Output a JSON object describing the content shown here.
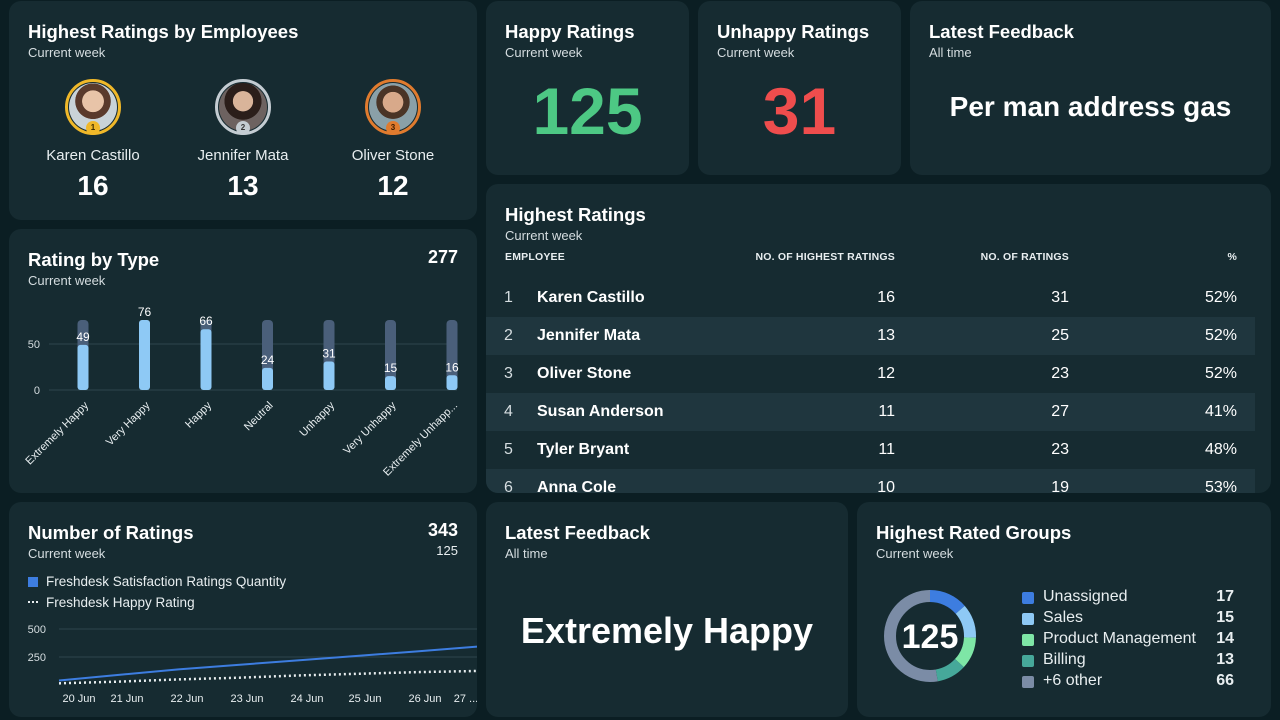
{
  "employees_card": {
    "title": "Highest Ratings by Employees",
    "subtitle": "Current week",
    "items": [
      {
        "name": "Karen Castillo",
        "value": "16",
        "rank": "1"
      },
      {
        "name": "Jennifer Mata",
        "value": "13",
        "rank": "2"
      },
      {
        "name": "Oliver Stone",
        "value": "12",
        "rank": "3"
      }
    ]
  },
  "happy": {
    "title": "Happy Ratings",
    "subtitle": "Current week",
    "value": "125",
    "color": "#4dc884"
  },
  "unhappy": {
    "title": "Unhappy Ratings",
    "subtitle": "Current week",
    "value": "31",
    "color": "#ef4d4d"
  },
  "latest_top": {
    "title": "Latest Feedback",
    "subtitle": "All time",
    "text": "Per man address gas"
  },
  "rating_type": {
    "title": "Rating by Type",
    "subtitle": "Current week",
    "total": "277"
  },
  "highest_ratings": {
    "title": "Highest Ratings",
    "subtitle": "Current week",
    "columns": [
      "EMPLOYEE",
      "NO. OF HIGHEST RATINGS",
      "NO. OF RATINGS",
      "%"
    ],
    "rows": [
      {
        "idx": "1",
        "name": "Karen Castillo",
        "highest": "16",
        "ratings": "31",
        "pct": "52%"
      },
      {
        "idx": "2",
        "name": "Jennifer Mata",
        "highest": "13",
        "ratings": "25",
        "pct": "52%"
      },
      {
        "idx": "3",
        "name": "Oliver Stone",
        "highest": "12",
        "ratings": "23",
        "pct": "52%"
      },
      {
        "idx": "4",
        "name": "Susan Anderson",
        "highest": "11",
        "ratings": "27",
        "pct": "41%"
      },
      {
        "idx": "5",
        "name": "Tyler Bryant",
        "highest": "11",
        "ratings": "23",
        "pct": "48%"
      },
      {
        "idx": "6",
        "name": "Anna Cole",
        "highest": "10",
        "ratings": "19",
        "pct": "53%"
      }
    ]
  },
  "num_ratings": {
    "title": "Number of Ratings",
    "subtitle": "Current week",
    "total": "343",
    "secondary": "125"
  },
  "latest_bottom": {
    "title": "Latest Feedback",
    "subtitle": "All time",
    "text": "Extremely Happy"
  },
  "groups": {
    "title": "Highest Rated Groups",
    "subtitle": "Current week",
    "center_value": "125",
    "items": [
      {
        "label": "Unassigned",
        "value": 17,
        "value_text": "17",
        "color": "#3d7de0"
      },
      {
        "label": "Sales",
        "value": 15,
        "value_text": "15",
        "color": "#8ec9f5"
      },
      {
        "label": "Product Management",
        "value": 14,
        "value_text": "14",
        "color": "#7ee6a6"
      },
      {
        "label": "Billing",
        "value": 13,
        "value_text": "13",
        "color": "#46a89a"
      },
      {
        "label": "+6 other",
        "value": 66,
        "value_text": "66",
        "color": "#7b8ca6"
      }
    ]
  },
  "chart_data": [
    {
      "type": "bar",
      "title": "Rating by Type",
      "categories": [
        "Extremely Happy",
        "Very Happy",
        "Happy",
        "Neutral",
        "Unhappy",
        "Very Unhappy",
        "Extremely Unhapp..."
      ],
      "values": [
        49,
        76,
        66,
        24,
        31,
        15,
        16
      ],
      "ylim": [
        0,
        76
      ],
      "yticks": [
        0,
        50
      ],
      "bar_color": "#8ec9f5",
      "track_color": "#4a5f7a"
    },
    {
      "type": "line",
      "title": "Number of Ratings",
      "x": [
        "20 Jun",
        "21 Jun",
        "22 Jun",
        "23 Jun",
        "24 Jun",
        "25 Jun",
        "26 Jun",
        "27 ..."
      ],
      "series": [
        {
          "name": "Freshdesk Satisfaction Ratings Quantity",
          "values": [
            40,
            90,
            140,
            180,
            220,
            260,
            300,
            343
          ],
          "color": "#3d7de0",
          "style": "solid"
        },
        {
          "name": "Freshdesk Happy Rating",
          "values": [
            15,
            30,
            50,
            65,
            85,
            100,
            115,
            125
          ],
          "color": "#e8eef0",
          "style": "dotted"
        }
      ],
      "ylim": [
        0,
        600
      ],
      "yticks": [
        250,
        500
      ]
    }
  ]
}
